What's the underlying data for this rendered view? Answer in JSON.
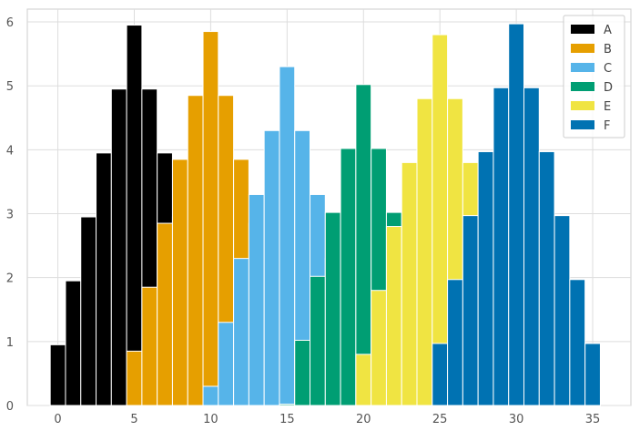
{
  "chart_data": {
    "type": "bar",
    "xlim": [
      -2.0,
      37.5
    ],
    "ylim": [
      0,
      6.2
    ],
    "grid": true,
    "legend_position": "top-right",
    "x_ticks": [
      0,
      5,
      10,
      15,
      20,
      25,
      30,
      35
    ],
    "y_ticks": [
      0,
      1,
      2,
      3,
      4,
      5,
      6
    ],
    "series": [
      {
        "name": "A",
        "color": "#000000",
        "bins": [
          {
            "x": 0,
            "value": 0.95
          },
          {
            "x": 1,
            "value": 1.95
          },
          {
            "x": 2,
            "value": 2.95
          },
          {
            "x": 3,
            "value": 3.95
          },
          {
            "x": 4,
            "value": 4.95
          },
          {
            "x": 5,
            "value": 5.95
          },
          {
            "x": 6,
            "value": 4.95
          },
          {
            "x": 7,
            "value": 3.95
          },
          {
            "x": 8,
            "value": 2.95
          },
          {
            "x": 9,
            "value": 1.95
          },
          {
            "x": 10,
            "value": 0.95
          }
        ]
      },
      {
        "name": "B",
        "color": "#E69F00",
        "bins": [
          {
            "x": 5,
            "value": 0.85
          },
          {
            "x": 6,
            "value": 1.85
          },
          {
            "x": 7,
            "value": 2.85
          },
          {
            "x": 8,
            "value": 3.85
          },
          {
            "x": 9,
            "value": 4.85
          },
          {
            "x": 10,
            "value": 5.85
          },
          {
            "x": 11,
            "value": 4.85
          },
          {
            "x": 12,
            "value": 3.85
          },
          {
            "x": 13,
            "value": 2.85
          },
          {
            "x": 14,
            "value": 1.85
          },
          {
            "x": 15,
            "value": 0.85
          }
        ]
      },
      {
        "name": "C",
        "color": "#56B4E9",
        "bins": [
          {
            "x": 10,
            "value": 0.3
          },
          {
            "x": 11,
            "value": 1.3
          },
          {
            "x": 12,
            "value": 2.3
          },
          {
            "x": 13,
            "value": 3.3
          },
          {
            "x": 14,
            "value": 4.3
          },
          {
            "x": 15,
            "value": 5.3
          },
          {
            "x": 16,
            "value": 4.3
          },
          {
            "x": 17,
            "value": 3.3
          },
          {
            "x": 18,
            "value": 2.3
          },
          {
            "x": 19,
            "value": 1.3
          },
          {
            "x": 20,
            "value": 0.3
          }
        ]
      },
      {
        "name": "D",
        "color": "#009E73",
        "bins": [
          {
            "x": 15,
            "value": 0.02
          },
          {
            "x": 16,
            "value": 1.02
          },
          {
            "x": 17,
            "value": 2.02
          },
          {
            "x": 18,
            "value": 3.02
          },
          {
            "x": 19,
            "value": 4.02
          },
          {
            "x": 20,
            "value": 5.02
          },
          {
            "x": 21,
            "value": 4.02
          },
          {
            "x": 22,
            "value": 3.02
          },
          {
            "x": 23,
            "value": 2.02
          },
          {
            "x": 24,
            "value": 1.02
          },
          {
            "x": 25,
            "value": 0.02
          }
        ]
      },
      {
        "name": "E",
        "color": "#F0E442",
        "bins": [
          {
            "x": 20,
            "value": 0.8
          },
          {
            "x": 21,
            "value": 1.8
          },
          {
            "x": 22,
            "value": 2.8
          },
          {
            "x": 23,
            "value": 3.8
          },
          {
            "x": 24,
            "value": 4.8
          },
          {
            "x": 25,
            "value": 5.8
          },
          {
            "x": 26,
            "value": 4.8
          },
          {
            "x": 27,
            "value": 3.8
          },
          {
            "x": 28,
            "value": 2.8
          },
          {
            "x": 29,
            "value": 1.8
          },
          {
            "x": 30,
            "value": 0.8
          }
        ]
      },
      {
        "name": "F",
        "color": "#0072B2",
        "bins": [
          {
            "x": 25,
            "value": 0.97
          },
          {
            "x": 26,
            "value": 1.97
          },
          {
            "x": 27,
            "value": 2.97
          },
          {
            "x": 28,
            "value": 3.97
          },
          {
            "x": 29,
            "value": 4.97
          },
          {
            "x": 30,
            "value": 5.97
          },
          {
            "x": 31,
            "value": 4.97
          },
          {
            "x": 32,
            "value": 3.97
          },
          {
            "x": 33,
            "value": 2.97
          },
          {
            "x": 34,
            "value": 1.97
          },
          {
            "x": 35,
            "value": 0.97
          }
        ]
      }
    ]
  },
  "style": {
    "background": "#ffffff",
    "grid_color": "#dddddd",
    "axis_color": "#cccccc",
    "bar_edge_color": "#ffffff",
    "tick_text_color": "#555555"
  }
}
